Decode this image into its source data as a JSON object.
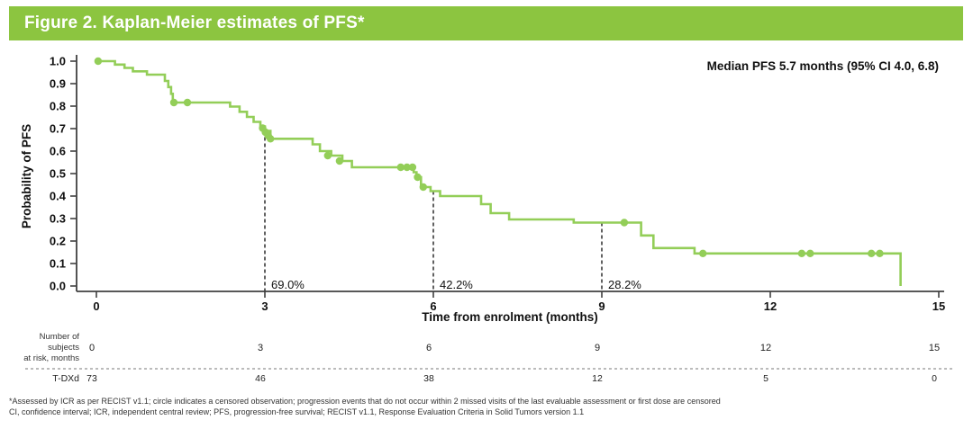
{
  "header": {
    "title": "Figure 2. Kaplan-Meier estimates of PFS*",
    "bg_color": "#8CC540",
    "text_color": "#FFFFFF"
  },
  "chart_data": {
    "type": "line",
    "subtype": "kaplan-meier-step",
    "title": "Kaplan-Meier estimates of PFS",
    "xlabel": "Time from enrolment (months)",
    "ylabel": "Probability of PFS",
    "annotation": "Median PFS 5.7 months (95% CI 4.0, 6.8)",
    "xlim": [
      0,
      15
    ],
    "ylim": [
      0.0,
      1.0
    ],
    "x_ticks": [
      0,
      3,
      6,
      9,
      12,
      15
    ],
    "y_ticks": [
      0.0,
      0.1,
      0.2,
      0.3,
      0.4,
      0.5,
      0.6,
      0.7,
      0.8,
      0.9,
      1.0
    ],
    "grid": false,
    "curve_color": "#93CE58",
    "axis_color": "#404040",
    "series": [
      {
        "name": "T-DXd",
        "steps": [
          [
            0.0,
            1.0
          ],
          [
            0.33,
            0.985
          ],
          [
            0.5,
            0.97
          ],
          [
            0.65,
            0.955
          ],
          [
            0.9,
            0.94
          ],
          [
            1.22,
            0.912
          ],
          [
            1.28,
            0.885
          ],
          [
            1.33,
            0.855
          ],
          [
            1.36,
            0.816
          ],
          [
            2.38,
            0.798
          ],
          [
            2.55,
            0.775
          ],
          [
            2.68,
            0.752
          ],
          [
            2.8,
            0.73
          ],
          [
            2.92,
            0.71
          ],
          [
            3.0,
            0.69
          ],
          [
            3.1,
            0.655
          ],
          [
            3.85,
            0.63
          ],
          [
            3.98,
            0.6
          ],
          [
            4.18,
            0.58
          ],
          [
            4.38,
            0.556
          ],
          [
            4.55,
            0.528
          ],
          [
            5.65,
            0.506
          ],
          [
            5.7,
            0.484
          ],
          [
            5.78,
            0.44
          ],
          [
            5.95,
            0.422
          ],
          [
            6.12,
            0.4
          ],
          [
            6.85,
            0.364
          ],
          [
            7.02,
            0.324
          ],
          [
            7.35,
            0.296
          ],
          [
            8.5,
            0.282
          ],
          [
            9.7,
            0.225
          ],
          [
            9.92,
            0.169
          ],
          [
            10.65,
            0.145
          ],
          [
            14.32,
            0.145
          ],
          [
            14.32,
            0.0
          ]
        ],
        "censor_marks": [
          [
            0.03,
            1.0
          ],
          [
            1.38,
            0.816
          ],
          [
            1.62,
            0.816
          ],
          [
            2.96,
            0.702
          ],
          [
            3.01,
            0.684
          ],
          [
            3.06,
            0.668
          ],
          [
            3.1,
            0.655
          ],
          [
            4.12,
            0.58
          ],
          [
            4.33,
            0.556
          ],
          [
            5.42,
            0.528
          ],
          [
            5.53,
            0.528
          ],
          [
            5.63,
            0.528
          ],
          [
            5.72,
            0.484
          ],
          [
            5.82,
            0.44
          ],
          [
            9.4,
            0.282
          ],
          [
            10.8,
            0.145
          ],
          [
            12.56,
            0.145
          ],
          [
            12.71,
            0.145
          ],
          [
            13.8,
            0.145
          ],
          [
            13.95,
            0.145
          ]
        ]
      }
    ],
    "milestones": [
      {
        "time": 3,
        "survival": 0.69,
        "label": "69.0%"
      },
      {
        "time": 6,
        "survival": 0.422,
        "label": "42.2%"
      },
      {
        "time": 9,
        "survival": 0.282,
        "label": "28.2%"
      }
    ],
    "risk_table": {
      "header_lines": [
        "Number of",
        "subjects",
        "at risk, months"
      ],
      "times": [
        0,
        3,
        6,
        9,
        12,
        15
      ],
      "rows": [
        {
          "label": "T-DXd",
          "values": [
            "73",
            "46",
            "38",
            "12",
            "5",
            "0"
          ]
        }
      ]
    }
  },
  "footnotes": [
    "*Assessed by ICR as per RECIST v1.1; circle indicates a censored observation; progression events that do not occur within 2 missed visits of the last evaluable assessment or first dose are censored",
    "CI, confidence interval; ICR, independent central review; PFS, progression-free survival; RECIST v1.1, Response Evaluation Criteria in Solid Tumors version 1.1"
  ]
}
